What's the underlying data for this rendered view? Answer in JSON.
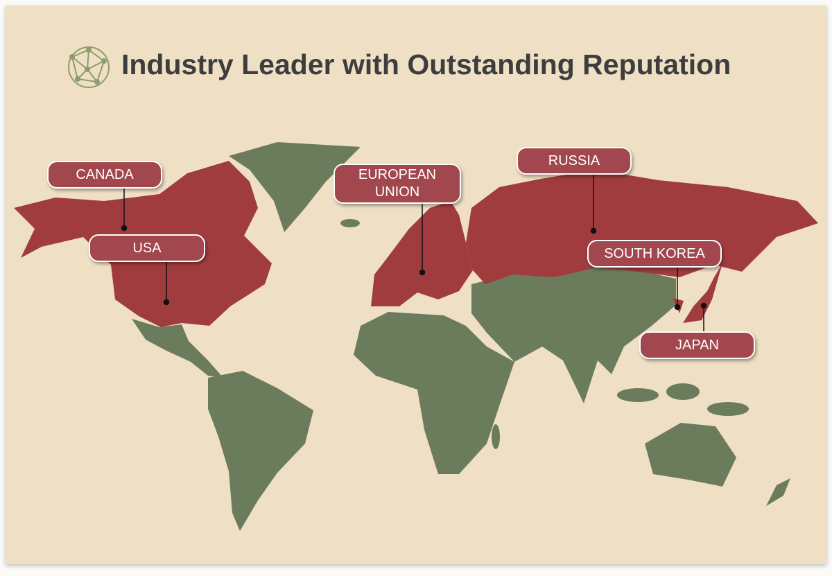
{
  "title": "Industry Leader with Outstanding Reputation",
  "labels": [
    {
      "text": "CANADA"
    },
    {
      "text": "USA"
    },
    {
      "text": "EUROPEAN UNION"
    },
    {
      "text": "RUSSIA"
    },
    {
      "text": "SOUTH KOREA"
    },
    {
      "text": "JAPAN"
    }
  ]
}
